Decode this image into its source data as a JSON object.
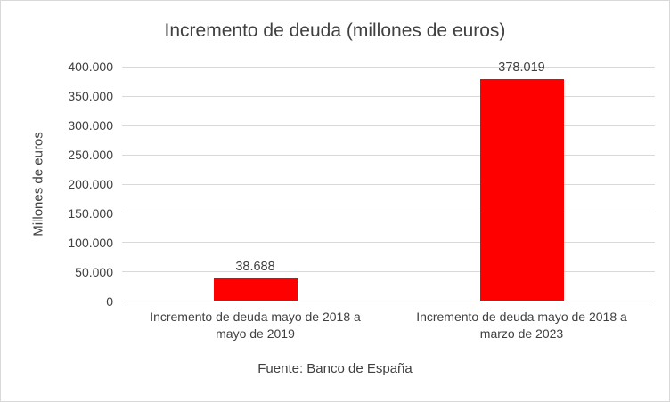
{
  "chart_data": {
    "type": "bar",
    "title": "Incremento de deuda (millones de euros)",
    "ylabel": "Millones de euros",
    "xlabel": "",
    "source": "Fuente: Banco de España",
    "categories": [
      "Incremento de deuda mayo de 2018 a mayo de 2019",
      "Incremento de deuda mayo de 2018 a marzo de 2023"
    ],
    "values": [
      38688,
      378019
    ],
    "value_labels": [
      "38.688",
      "378.019"
    ],
    "bar_color": "#ff0000",
    "ylim": [
      0,
      400000
    ],
    "ytick_step": 50000,
    "yticks": [
      {
        "value": 0,
        "label": "0"
      },
      {
        "value": 50000,
        "label": "50.000"
      },
      {
        "value": 100000,
        "label": "100.000"
      },
      {
        "value": 150000,
        "label": "150.000"
      },
      {
        "value": 200000,
        "label": "200.000"
      },
      {
        "value": 250000,
        "label": "250.000"
      },
      {
        "value": 300000,
        "label": "300.000"
      },
      {
        "value": 350000,
        "label": "350.000"
      },
      {
        "value": 400000,
        "label": "400.000"
      }
    ],
    "grid": true,
    "legend": "none"
  }
}
